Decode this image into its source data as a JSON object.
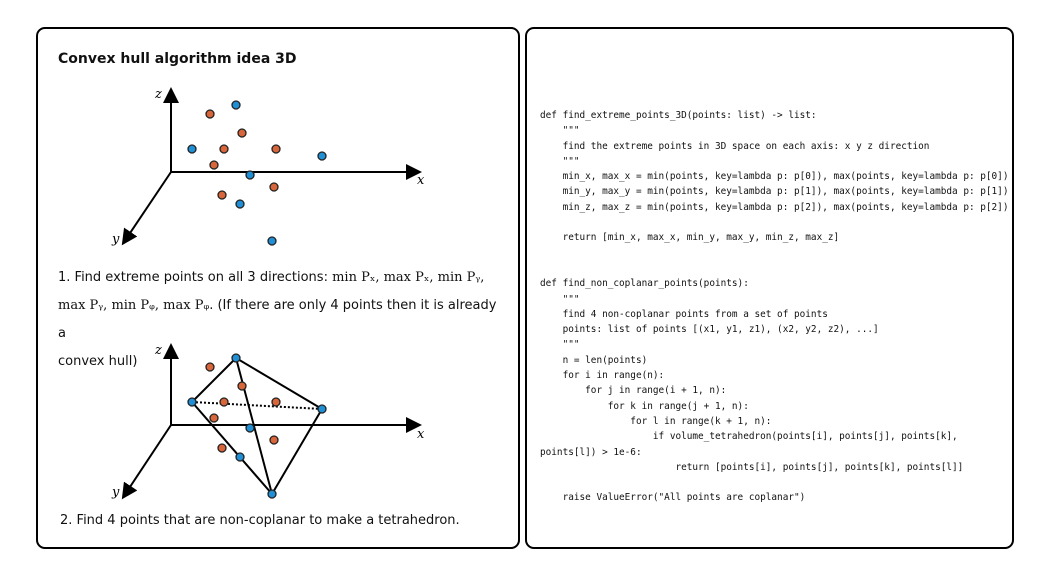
{
  "left": {
    "title": "Convex hull algorithm idea 3D",
    "axis_labels": {
      "x": "x",
      "y": "y",
      "z": "z"
    },
    "step1": {
      "line1_prefix": "1. Find extreme points on all 3 directions: ",
      "line1_math": "min Pₓ, max Pₓ, min Pᵧ,",
      "line2_math": "max Pᵧ, min Pᵩ, max Pᵩ",
      "line2_rest": ". (If there are only 4 points then it is already a",
      "line3": "convex hull)"
    },
    "step2": "2. Find 4 points that are non-coplanar to make a tetrahedron.",
    "colors": {
      "blue_point": "#1f8fd6",
      "orange_point": "#d9663a",
      "stroke": "#000000"
    }
  },
  "code_lines": [
    "def find_extreme_points_3D(points: list) -> list:",
    "    \"\"\"",
    "    find the extreme points in 3D space on each axis: x y z direction",
    "    \"\"\"",
    "    min_x, max_x = min(points, key=lambda p: p[0]), max(points, key=lambda p: p[0])",
    "    min_y, max_y = min(points, key=lambda p: p[1]), max(points, key=lambda p: p[1])",
    "    min_z, max_z = min(points, key=lambda p: p[2]), max(points, key=lambda p: p[2])",
    "",
    "    return [min_x, max_x, min_y, max_y, min_z, max_z]",
    "",
    "",
    "def find_non_coplanar_points(points):",
    "    \"\"\"",
    "    find 4 non-coplanar points from a set of points",
    "    points: list of points [(x1, y1, z1), (x2, y2, z2), ...]",
    "    \"\"\"",
    "    n = len(points)",
    "    for i in range(n):",
    "        for j in range(i + 1, n):",
    "            for k in range(j + 1, n):",
    "                for l in range(k + 1, n):",
    "                    if volume_tetrahedron(points[i], points[j], points[k],",
    "points[l]) > 1e-6:",
    "                        return [points[i], points[j], points[k], points[l]]",
    "",
    "    raise ValueError(\"All points are coplanar\")"
  ]
}
